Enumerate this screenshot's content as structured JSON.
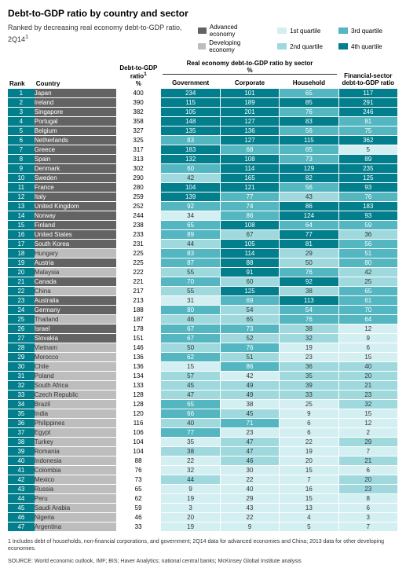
{
  "title": "Debt-to-GDP ratio by country and sector",
  "subtitle": "Ranked by decreasing real economy\ndebt-to-GDP ratio, 2Q14",
  "subtitle_sup": "1",
  "legend": {
    "econ": [
      {
        "label": "Advanced economy",
        "color": "#636363"
      },
      {
        "label": "Developing economy",
        "color": "#bdbdbd"
      }
    ],
    "quartiles": [
      {
        "label": "1st quartile",
        "color": "#d4eff2"
      },
      {
        "label": "2nd quartile",
        "color": "#9fd9de"
      },
      {
        "label": "3rd quartile",
        "color": "#54b6c0"
      },
      {
        "label": "4th quartile",
        "color": "#037e8c"
      }
    ]
  },
  "columns": {
    "rank": "Rank",
    "country": "Country",
    "ratio": "Debt-to-GDP ratio",
    "ratio_sup": "1",
    "ratio_unit": "%",
    "sector_header": "Real economy debt-to-GDP ratio by sector",
    "sector_unit": "%",
    "gov": "Government",
    "corp": "Corporate",
    "hh": "Household",
    "fin": "Financial-sector debt-to-GDP ratio"
  },
  "colors": {
    "rank_bg": "#037e8c",
    "adv": "#636363",
    "dev": "#bdbdbd",
    "q1": "#d4eff2",
    "q2": "#9fd9de",
    "q3": "#54b6c0",
    "q4": "#037e8c",
    "text_light": "#ffffff",
    "text_dark": "#333333"
  },
  "footnote": "1  Includes debt of households, non-financial corporations, and government; 2Q14 data for advanced economies and China; 2013 data for other developing economies.",
  "source": "SOURCE:   World economic outlook, IMF; BIS; Haver Analytics; national central banks; McKinsey Global Institute analysis",
  "rows": [
    {
      "r": 1,
      "c": "Japan",
      "e": "adv",
      "ratio": 400,
      "gov": [
        234,
        "q4"
      ],
      "corp": [
        101,
        "q4"
      ],
      "hh": [
        65,
        "q3"
      ],
      "fin": [
        117,
        "q4"
      ]
    },
    {
      "r": 2,
      "c": "Ireland",
      "e": "adv",
      "ratio": 390,
      "gov": [
        115,
        "q4"
      ],
      "corp": [
        189,
        "q4"
      ],
      "hh": [
        85,
        "q4"
      ],
      "fin": [
        291,
        "q4"
      ]
    },
    {
      "r": 3,
      "c": "Singapore",
      "e": "adv",
      "ratio": 382,
      "gov": [
        105,
        "q4"
      ],
      "corp": [
        201,
        "q4"
      ],
      "hh": [
        76,
        "q3"
      ],
      "fin": [
        246,
        "q4"
      ]
    },
    {
      "r": 4,
      "c": "Portugal",
      "e": "adv",
      "ratio": 358,
      "gov": [
        148,
        "q4"
      ],
      "corp": [
        127,
        "q4"
      ],
      "hh": [
        83,
        "q4"
      ],
      "fin": [
        81,
        "q3"
      ]
    },
    {
      "r": 5,
      "c": "Belgium",
      "e": "adv",
      "ratio": 327,
      "gov": [
        135,
        "q4"
      ],
      "corp": [
        136,
        "q4"
      ],
      "hh": [
        56,
        "q3"
      ],
      "fin": [
        75,
        "q3"
      ]
    },
    {
      "r": 6,
      "c": "Netherlands",
      "e": "adv",
      "ratio": 325,
      "gov": [
        83,
        "q3"
      ],
      "corp": [
        127,
        "q4"
      ],
      "hh": [
        115,
        "q4"
      ],
      "fin": [
        362,
        "q4"
      ]
    },
    {
      "r": 7,
      "c": "Greece",
      "e": "adv",
      "ratio": 317,
      "gov": [
        183,
        "q4"
      ],
      "corp": [
        68,
        "q3"
      ],
      "hh": [
        65,
        "q3"
      ],
      "fin": [
        5,
        "q1"
      ]
    },
    {
      "r": 8,
      "c": "Spain",
      "e": "adv",
      "ratio": 313,
      "gov": [
        132,
        "q4"
      ],
      "corp": [
        108,
        "q4"
      ],
      "hh": [
        73,
        "q3"
      ],
      "fin": [
        89,
        "q4"
      ]
    },
    {
      "r": 9,
      "c": "Denmark",
      "e": "adv",
      "ratio": 302,
      "gov": [
        60,
        "q3"
      ],
      "corp": [
        114,
        "q4"
      ],
      "hh": [
        129,
        "q4"
      ],
      "fin": [
        235,
        "q4"
      ]
    },
    {
      "r": 10,
      "c": "Sweden",
      "e": "adv",
      "ratio": 290,
      "gov": [
        42,
        "q2"
      ],
      "corp": [
        165,
        "q4"
      ],
      "hh": [
        82,
        "q4"
      ],
      "fin": [
        125,
        "q4"
      ]
    },
    {
      "r": 11,
      "c": "France",
      "e": "adv",
      "ratio": 280,
      "gov": [
        104,
        "q4"
      ],
      "corp": [
        121,
        "q4"
      ],
      "hh": [
        56,
        "q3"
      ],
      "fin": [
        93,
        "q4"
      ]
    },
    {
      "r": 12,
      "c": "Italy",
      "e": "adv",
      "ratio": 259,
      "gov": [
        139,
        "q4"
      ],
      "corp": [
        77,
        "q3"
      ],
      "hh": [
        43,
        "q2"
      ],
      "fin": [
        76,
        "q3"
      ]
    },
    {
      "r": 13,
      "c": "United Kingdom",
      "e": "adv",
      "ratio": 252,
      "gov": [
        92,
        "q3"
      ],
      "corp": [
        74,
        "q3"
      ],
      "hh": [
        86,
        "q4"
      ],
      "fin": [
        183,
        "q4"
      ]
    },
    {
      "r": 14,
      "c": "Norway",
      "e": "adv",
      "ratio": 244,
      "gov": [
        34,
        "q1"
      ],
      "corp": [
        86,
        "q3"
      ],
      "hh": [
        124,
        "q4"
      ],
      "fin": [
        93,
        "q4"
      ]
    },
    {
      "r": 15,
      "c": "Finland",
      "e": "adv",
      "ratio": 238,
      "gov": [
        65,
        "q3"
      ],
      "corp": [
        108,
        "q4"
      ],
      "hh": [
        64,
        "q3"
      ],
      "fin": [
        59,
        "q3"
      ]
    },
    {
      "r": 16,
      "c": "United States",
      "e": "adv",
      "ratio": 233,
      "gov": [
        89,
        "q3"
      ],
      "corp": [
        67,
        "q2"
      ],
      "hh": [
        77,
        "q4"
      ],
      "fin": [
        36,
        "q2"
      ]
    },
    {
      "r": 17,
      "c": "South Korea",
      "e": "adv",
      "ratio": 231,
      "gov": [
        44,
        "q2"
      ],
      "corp": [
        105,
        "q4"
      ],
      "hh": [
        81,
        "q4"
      ],
      "fin": [
        56,
        "q3"
      ]
    },
    {
      "r": 18,
      "c": "Hungary",
      "e": "dev",
      "ratio": 225,
      "gov": [
        83,
        "q3"
      ],
      "corp": [
        114,
        "q4"
      ],
      "hh": [
        29,
        "q2"
      ],
      "fin": [
        51,
        "q3"
      ]
    },
    {
      "r": 19,
      "c": "Austria",
      "e": "adv",
      "ratio": 225,
      "gov": [
        87,
        "q3"
      ],
      "corp": [
        88,
        "q4"
      ],
      "hh": [
        50,
        "q2"
      ],
      "fin": [
        80,
        "q3"
      ]
    },
    {
      "r": 20,
      "c": "Malaysia",
      "e": "dev",
      "ratio": 222,
      "gov": [
        55,
        "q2"
      ],
      "corp": [
        91,
        "q4"
      ],
      "hh": [
        76,
        "q3"
      ],
      "fin": [
        42,
        "q2"
      ]
    },
    {
      "r": 21,
      "c": "Canada",
      "e": "adv",
      "ratio": 221,
      "gov": [
        70,
        "q3"
      ],
      "corp": [
        60,
        "q2"
      ],
      "hh": [
        92,
        "q4"
      ],
      "fin": [
        25,
        "q2"
      ]
    },
    {
      "r": 22,
      "c": "China",
      "e": "dev",
      "ratio": 217,
      "gov": [
        55,
        "q2"
      ],
      "corp": [
        125,
        "q4"
      ],
      "hh": [
        38,
        "q2"
      ],
      "fin": [
        65,
        "q3"
      ]
    },
    {
      "r": 23,
      "c": "Australia",
      "e": "adv",
      "ratio": 213,
      "gov": [
        31,
        "q1"
      ],
      "corp": [
        69,
        "q3"
      ],
      "hh": [
        113,
        "q4"
      ],
      "fin": [
        61,
        "q3"
      ]
    },
    {
      "r": 24,
      "c": "Germany",
      "e": "adv",
      "ratio": 188,
      "gov": [
        80,
        "q3"
      ],
      "corp": [
        54,
        "q2"
      ],
      "hh": [
        54,
        "q3"
      ],
      "fin": [
        70,
        "q3"
      ]
    },
    {
      "r": 25,
      "c": "Thailand",
      "e": "dev",
      "ratio": 187,
      "gov": [
        46,
        "q2"
      ],
      "corp": [
        65,
        "q2"
      ],
      "hh": [
        76,
        "q3"
      ],
      "fin": [
        64,
        "q3"
      ]
    },
    {
      "r": 26,
      "c": "Israel",
      "e": "adv",
      "ratio": 178,
      "gov": [
        67,
        "q3"
      ],
      "corp": [
        73,
        "q3"
      ],
      "hh": [
        38,
        "q2"
      ],
      "fin": [
        12,
        "q1"
      ]
    },
    {
      "r": 27,
      "c": "Slovakia",
      "e": "adv",
      "ratio": 151,
      "gov": [
        67,
        "q3"
      ],
      "corp": [
        52,
        "q2"
      ],
      "hh": [
        32,
        "q2"
      ],
      "fin": [
        9,
        "q1"
      ]
    },
    {
      "r": 28,
      "c": "Vietnam",
      "e": "dev",
      "ratio": 146,
      "gov": [
        50,
        "q2"
      ],
      "corp": [
        76,
        "q3"
      ],
      "hh": [
        19,
        "q1"
      ],
      "fin": [
        6,
        "q1"
      ]
    },
    {
      "r": 29,
      "c": "Morocco",
      "e": "dev",
      "ratio": 136,
      "gov": [
        62,
        "q3"
      ],
      "corp": [
        51,
        "q2"
      ],
      "hh": [
        23,
        "q1"
      ],
      "fin": [
        15,
        "q1"
      ]
    },
    {
      "r": 30,
      "c": "Chile",
      "e": "dev",
      "ratio": 136,
      "gov": [
        15,
        "q1"
      ],
      "corp": [
        86,
        "q3"
      ],
      "hh": [
        36,
        "q2"
      ],
      "fin": [
        40,
        "q2"
      ]
    },
    {
      "r": 31,
      "c": "Poland",
      "e": "dev",
      "ratio": 134,
      "gov": [
        57,
        "q2"
      ],
      "corp": [
        42,
        "q1"
      ],
      "hh": [
        35,
        "q2"
      ],
      "fin": [
        20,
        "q2"
      ]
    },
    {
      "r": 32,
      "c": "South Africa",
      "e": "dev",
      "ratio": 133,
      "gov": [
        45,
        "q2"
      ],
      "corp": [
        49,
        "q2"
      ],
      "hh": [
        39,
        "q2"
      ],
      "fin": [
        21,
        "q2"
      ]
    },
    {
      "r": 33,
      "c": "Czech Republic",
      "e": "dev",
      "ratio": 128,
      "gov": [
        47,
        "q2"
      ],
      "corp": [
        49,
        "q2"
      ],
      "hh": [
        33,
        "q2"
      ],
      "fin": [
        23,
        "q2"
      ]
    },
    {
      "r": 34,
      "c": "Brazil",
      "e": "dev",
      "ratio": 128,
      "gov": [
        65,
        "q3"
      ],
      "corp": [
        38,
        "q1"
      ],
      "hh": [
        25,
        "q1"
      ],
      "fin": [
        32,
        "q2"
      ]
    },
    {
      "r": 35,
      "c": "India",
      "e": "dev",
      "ratio": 120,
      "gov": [
        66,
        "q3"
      ],
      "corp": [
        45,
        "q2"
      ],
      "hh": [
        9,
        "q1"
      ],
      "fin": [
        15,
        "q1"
      ]
    },
    {
      "r": 36,
      "c": "Philippines",
      "e": "dev",
      "ratio": 116,
      "gov": [
        40,
        "q2"
      ],
      "corp": [
        71,
        "q3"
      ],
      "hh": [
        6,
        "q1"
      ],
      "fin": [
        12,
        "q1"
      ]
    },
    {
      "r": 37,
      "c": "Egypt",
      "e": "dev",
      "ratio": 106,
      "gov": [
        77,
        "q3"
      ],
      "corp": [
        23,
        "q1"
      ],
      "hh": [
        6,
        "q1"
      ],
      "fin": [
        2,
        "q1"
      ]
    },
    {
      "r": 38,
      "c": "Turkey",
      "e": "dev",
      "ratio": 104,
      "gov": [
        35,
        "q1"
      ],
      "corp": [
        47,
        "q2"
      ],
      "hh": [
        22,
        "q1"
      ],
      "fin": [
        29,
        "q2"
      ]
    },
    {
      "r": 39,
      "c": "Romania",
      "e": "dev",
      "ratio": 104,
      "gov": [
        38,
        "q2"
      ],
      "corp": [
        47,
        "q2"
      ],
      "hh": [
        19,
        "q1"
      ],
      "fin": [
        7,
        "q1"
      ]
    },
    {
      "r": 40,
      "c": "Indonesia",
      "e": "dev",
      "ratio": 88,
      "gov": [
        22,
        "q1"
      ],
      "corp": [
        46,
        "q2"
      ],
      "hh": [
        20,
        "q1"
      ],
      "fin": [
        21,
        "q2"
      ]
    },
    {
      "r": 41,
      "c": "Colombia",
      "e": "dev",
      "ratio": 76,
      "gov": [
        32,
        "q1"
      ],
      "corp": [
        30,
        "q1"
      ],
      "hh": [
        15,
        "q1"
      ],
      "fin": [
        6,
        "q1"
      ]
    },
    {
      "r": 42,
      "c": "Mexico",
      "e": "dev",
      "ratio": 73,
      "gov": [
        44,
        "q2"
      ],
      "corp": [
        22,
        "q1"
      ],
      "hh": [
        7,
        "q1"
      ],
      "fin": [
        20,
        "q2"
      ]
    },
    {
      "r": 43,
      "c": "Russia",
      "e": "dev",
      "ratio": 65,
      "gov": [
        9,
        "q1"
      ],
      "corp": [
        40,
        "q1"
      ],
      "hh": [
        16,
        "q1"
      ],
      "fin": [
        23,
        "q2"
      ]
    },
    {
      "r": 44,
      "c": "Peru",
      "e": "dev",
      "ratio": 62,
      "gov": [
        19,
        "q1"
      ],
      "corp": [
        29,
        "q1"
      ],
      "hh": [
        15,
        "q1"
      ],
      "fin": [
        8,
        "q1"
      ]
    },
    {
      "r": 45,
      "c": "Saudi Arabia",
      "e": "dev",
      "ratio": 59,
      "gov": [
        3,
        "q1"
      ],
      "corp": [
        43,
        "q1"
      ],
      "hh": [
        13,
        "q1"
      ],
      "fin": [
        6,
        "q1"
      ]
    },
    {
      "r": 46,
      "c": "Nigeria",
      "e": "dev",
      "ratio": 46,
      "gov": [
        20,
        "q1"
      ],
      "corp": [
        22,
        "q1"
      ],
      "hh": [
        4,
        "q1"
      ],
      "fin": [
        3,
        "q1"
      ]
    },
    {
      "r": 47,
      "c": "Argentina",
      "e": "dev",
      "ratio": 33,
      "gov": [
        19,
        "q1"
      ],
      "corp": [
        9,
        "q1"
      ],
      "hh": [
        5,
        "q1"
      ],
      "fin": [
        7,
        "q1"
      ]
    }
  ]
}
